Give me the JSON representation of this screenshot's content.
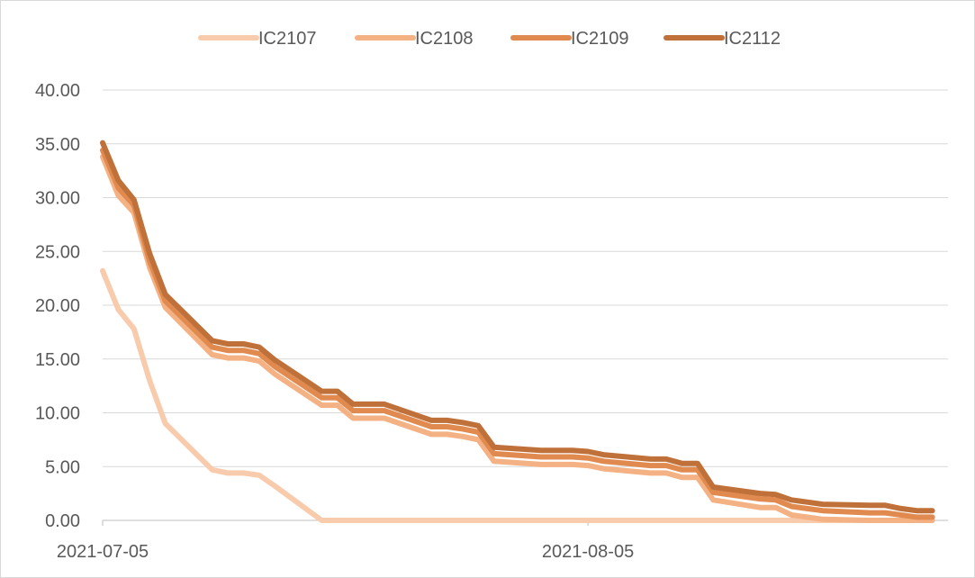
{
  "chart_data": {
    "type": "line",
    "title": "",
    "xlabel": "",
    "ylabel": "",
    "legend_position": "top",
    "grid": true,
    "ylim": [
      0,
      40
    ],
    "y_ticks": [
      "0.00",
      "5.00",
      "10.00",
      "15.00",
      "20.00",
      "25.00",
      "30.00",
      "35.00",
      "40.00"
    ],
    "x_tick_labels": [
      {
        "date": "2021-07-05",
        "label": "2021-07-05"
      },
      {
        "date": "2021-08-05",
        "label": "2021-08-05"
      }
    ],
    "x_range": [
      "2021-07-05",
      "2021-08-28"
    ],
    "dates": [
      "2021-07-05",
      "2021-07-06",
      "2021-07-07",
      "2021-07-08",
      "2021-07-09",
      "2021-07-12",
      "2021-07-13",
      "2021-07-14",
      "2021-07-15",
      "2021-07-16",
      "2021-07-19",
      "2021-07-20",
      "2021-07-21",
      "2021-07-22",
      "2021-07-23",
      "2021-07-26",
      "2021-07-27",
      "2021-07-28",
      "2021-07-29",
      "2021-07-30",
      "2021-08-02",
      "2021-08-03",
      "2021-08-04",
      "2021-08-05",
      "2021-08-06",
      "2021-08-09",
      "2021-08-10",
      "2021-08-11",
      "2021-08-12",
      "2021-08-13",
      "2021-08-16",
      "2021-08-17",
      "2021-08-18",
      "2021-08-19",
      "2021-08-20",
      "2021-08-23",
      "2021-08-24",
      "2021-08-25",
      "2021-08-26",
      "2021-08-27"
    ],
    "series": [
      {
        "name": "IC2107",
        "color": "#f8cbad",
        "values": [
          23.2,
          19.6,
          17.8,
          13,
          9,
          4.7,
          4.4,
          4.4,
          4.2,
          3.2,
          0,
          0,
          0,
          0,
          0,
          0,
          0,
          0,
          0,
          0,
          0,
          0,
          0,
          0,
          0,
          0,
          0,
          0,
          0,
          0,
          0,
          0,
          0,
          0,
          0,
          0,
          0,
          0,
          0,
          0
        ]
      },
      {
        "name": "IC2108",
        "color": "#f4b183",
        "values": [
          33.8,
          30.2,
          28.6,
          23.5,
          19.8,
          15.4,
          15.1,
          15.1,
          14.8,
          13.6,
          10.7,
          10.7,
          9.5,
          9.5,
          9.5,
          8,
          8,
          7.8,
          7.5,
          5.5,
          5.2,
          5.2,
          5.2,
          5.1,
          4.8,
          4.4,
          4.4,
          4,
          4,
          1.9,
          1.2,
          1.2,
          0.5,
          0.3,
          0.1,
          0,
          0,
          0,
          0,
          0
        ]
      },
      {
        "name": "IC2109",
        "color": "#e08a50",
        "values": [
          34.4,
          30.9,
          29.3,
          24.1,
          20.4,
          16.1,
          15.8,
          15.8,
          15.5,
          14.3,
          11.4,
          11.4,
          10.2,
          10.2,
          10.2,
          8.7,
          8.7,
          8.5,
          8.2,
          6.2,
          5.9,
          5.9,
          5.9,
          5.8,
          5.5,
          5.1,
          5.1,
          4.7,
          4.7,
          2.6,
          2,
          1.9,
          1.3,
          1.1,
          0.9,
          0.7,
          0.7,
          0.5,
          0.3,
          0.3
        ]
      },
      {
        "name": "IC2112",
        "color": "#c0713a",
        "values": [
          35.1,
          31.6,
          29.8,
          24.8,
          21,
          16.7,
          16.4,
          16.4,
          16.1,
          14.9,
          12,
          12,
          10.8,
          10.8,
          10.8,
          9.3,
          9.3,
          9.1,
          8.8,
          6.8,
          6.5,
          6.5,
          6.5,
          6.4,
          6.1,
          5.7,
          5.7,
          5.3,
          5.3,
          3.1,
          2.5,
          2.4,
          1.9,
          1.7,
          1.5,
          1.4,
          1.4,
          1.1,
          0.9,
          0.9
        ]
      }
    ]
  }
}
